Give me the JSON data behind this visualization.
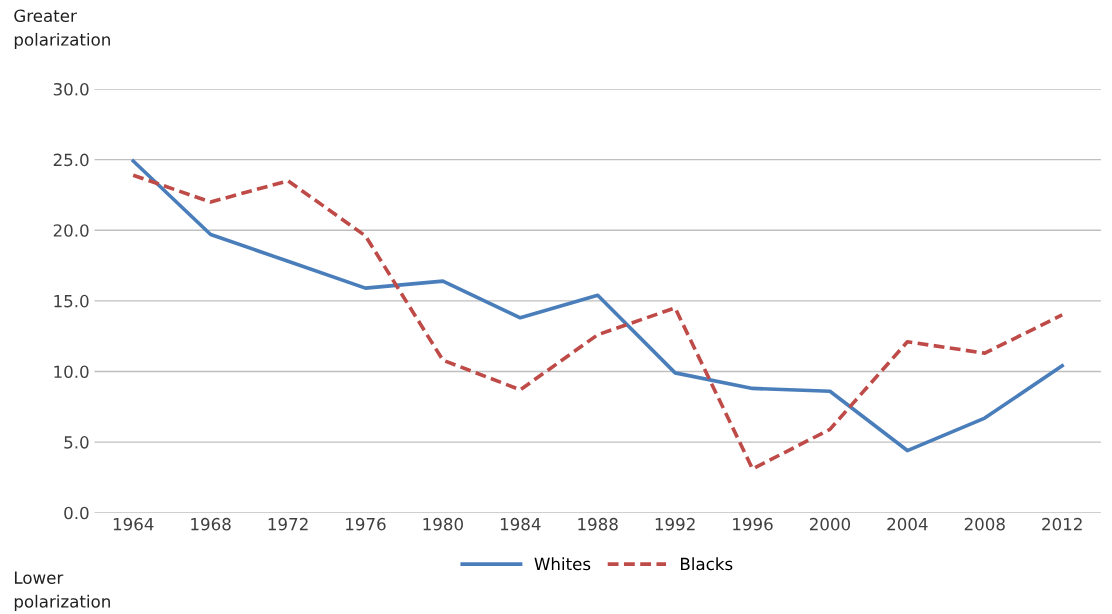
{
  "chart_data": {
    "type": "line",
    "categories": [
      "1964",
      "1968",
      "1972",
      "1976",
      "1980",
      "1984",
      "1988",
      "1992",
      "1996",
      "2000",
      "2004",
      "2008",
      "2012"
    ],
    "series": [
      {
        "name": "Whites",
        "color": "#4a7ebb",
        "line_style": "solid",
        "values": [
          24.9,
          19.7,
          17.8,
          15.9,
          16.4,
          13.8,
          15.4,
          9.9,
          8.8,
          8.6,
          4.4,
          6.7,
          10.4
        ]
      },
      {
        "name": "Blacks",
        "color": "#be4b48",
        "line_style": "dashed",
        "values": [
          23.9,
          22.0,
          23.5,
          19.6,
          10.8,
          8.7,
          12.6,
          14.5,
          3.1,
          5.9,
          12.1,
          11.3,
          14.0
        ]
      }
    ],
    "ylim": [
      0,
      30
    ],
    "yticks": [
      {
        "value": 0,
        "label": "0.0"
      },
      {
        "value": 5,
        "label": "5.0"
      },
      {
        "value": 10,
        "label": "10.0"
      },
      {
        "value": 15,
        "label": "15.0"
      },
      {
        "value": 20,
        "label": "20.0"
      },
      {
        "value": 25,
        "label": "25.0"
      },
      {
        "value": 30,
        "label": "30.0"
      }
    ],
    "grid": "y",
    "legend": "bottom",
    "marker": "none",
    "annotations": [
      "Greater\npolarization",
      "Lower\npolarization"
    ]
  }
}
